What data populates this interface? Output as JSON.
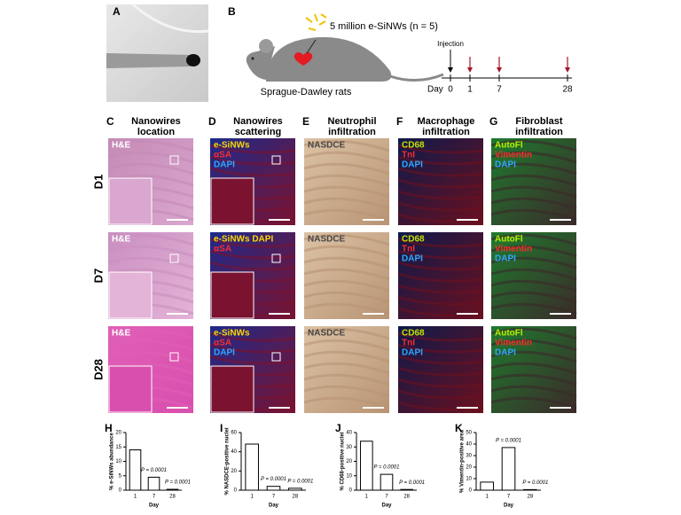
{
  "figure": {
    "panel_a": {
      "label": "A"
    },
    "panel_b": {
      "label": "B",
      "dose_text": "5 million e-SiNWs (n = 5)",
      "animal": "Sprague-Dawley rats",
      "injection": "Injection",
      "timeline_label": "Day",
      "timeline_days": [
        "0",
        "1",
        "7",
        "28"
      ]
    },
    "grid": {
      "rows": [
        "D1",
        "D7",
        "D28"
      ],
      "columns": [
        {
          "letter": "C",
          "title": [
            "Nanowires",
            "location"
          ],
          "stains": [
            [
              "H&E"
            ],
            [
              "H&E"
            ],
            [
              "H&E"
            ]
          ]
        },
        {
          "letter": "D",
          "title": [
            "Nanowires",
            "scattering"
          ],
          "stains": [
            [
              "e-SiNWs",
              "αSA",
              "DAPI"
            ],
            [
              "e-SiNWs DAPI",
              "αSA"
            ],
            [
              "e-SiNWs",
              "αSA",
              "DAPI"
            ]
          ]
        },
        {
          "letter": "E",
          "title": [
            "Neutrophil",
            "infiltration"
          ],
          "stains": [
            [
              "NASDCE"
            ],
            [
              "NASDCE"
            ],
            [
              "NASDCE"
            ]
          ]
        },
        {
          "letter": "F",
          "title": [
            "Macrophage",
            "infiltration"
          ],
          "stains": [
            [
              "CD68",
              "TnI",
              "DAPI"
            ],
            [
              "CD68",
              "TnI",
              "DAPI"
            ],
            [
              "CD68",
              "TnI",
              "DAPI"
            ]
          ]
        },
        {
          "letter": "G",
          "title": [
            "Fibroblast",
            "infiltration"
          ],
          "stains": [
            [
              "AutoFl",
              "Vimentin",
              "DAPI"
            ],
            [
              "AutoFl",
              "Vimentin",
              "DAPI"
            ],
            [
              "AutoFl",
              "Vimentin",
              "DAPI"
            ]
          ]
        }
      ]
    }
  },
  "chart_data": [
    {
      "type": "bar",
      "panel_label": "H",
      "ylabel": "% e-SiNWs abundance",
      "xlabel": "Day",
      "categories": [
        "1",
        "7",
        "28"
      ],
      "values": [
        14,
        4.5,
        0.3
      ],
      "p_values": [
        null,
        "P = 0.0001",
        "P = 0.0001"
      ],
      "color": "#ffffff",
      "ylim": [
        0,
        20
      ],
      "yticks": [
        0,
        5,
        10,
        15,
        20
      ]
    },
    {
      "type": "bar",
      "panel_label": "I",
      "ylabel": "% NASDCE-positive nuclei",
      "xlabel": "Day",
      "categories": [
        "1",
        "7",
        "28"
      ],
      "values": [
        48,
        4,
        2
      ],
      "p_values": [
        null,
        "P = 0.0001",
        "P = 0.0001"
      ],
      "color": "#ffffff",
      "ylim": [
        0,
        60
      ],
      "yticks": [
        0,
        20,
        40,
        60
      ]
    },
    {
      "type": "bar",
      "panel_label": "J",
      "ylabel": "% CD68-positive nuclei",
      "xlabel": "Day",
      "categories": [
        "1",
        "7",
        "28"
      ],
      "values": [
        34,
        11,
        0.5
      ],
      "p_values": [
        null,
        "P = 0.0001",
        "P = 0.0001"
      ],
      "color": "#ffffff",
      "ylim": [
        0,
        40
      ],
      "yticks": [
        0,
        10,
        20,
        30,
        40
      ]
    },
    {
      "type": "bar",
      "panel_label": "K",
      "ylabel": "% Vimentin-positive area",
      "xlabel": "Day",
      "categories": [
        "1",
        "7",
        "28"
      ],
      "values": [
        7,
        37,
        0.5
      ],
      "p_values": [
        null,
        "P = 0.0001",
        "P = 0.0001"
      ],
      "color": "#ffffff",
      "ylim": [
        0,
        50
      ],
      "yticks": [
        0,
        10,
        20,
        30,
        40,
        50
      ]
    }
  ]
}
